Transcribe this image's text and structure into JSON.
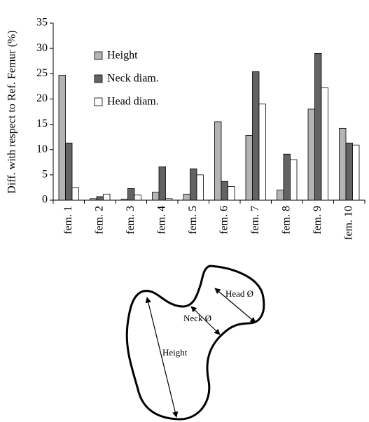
{
  "chart_data": {
    "type": "bar",
    "y_label": "Diff. with respect to Ref. Femur (%)",
    "categories": [
      "fem. 1",
      "fem. 2",
      "fem. 3",
      "fem. 4",
      "fem. 5",
      "fem. 6",
      "fem. 7",
      "fem. 8",
      "fem. 9",
      "fem. 10"
    ],
    "series": [
      {
        "name": "Height",
        "color": "#b4b4b4",
        "values": [
          24.7,
          0.3,
          0.2,
          1.6,
          1.2,
          15.5,
          12.8,
          2.0,
          18.0,
          14.2
        ]
      },
      {
        "name": "Neck diam.",
        "color": "#636363",
        "values": [
          11.3,
          0.7,
          2.3,
          6.6,
          6.2,
          3.7,
          25.4,
          9.1,
          29.0,
          11.3
        ]
      },
      {
        "name": "Head diam.",
        "color": "#ffffff",
        "values": [
          2.5,
          1.2,
          1.0,
          0.3,
          5.0,
          2.7,
          19.0,
          8.0,
          22.2,
          10.9
        ]
      }
    ],
    "ylim": [
      0,
      35
    ],
    "yticks": [
      0,
      5,
      10,
      15,
      20,
      25,
      30,
      35
    ],
    "grid": false,
    "legend": "upper left"
  },
  "diagram": {
    "head_label": "Head Ø",
    "neck_label": "Neck Ø",
    "height_label": "Height"
  }
}
